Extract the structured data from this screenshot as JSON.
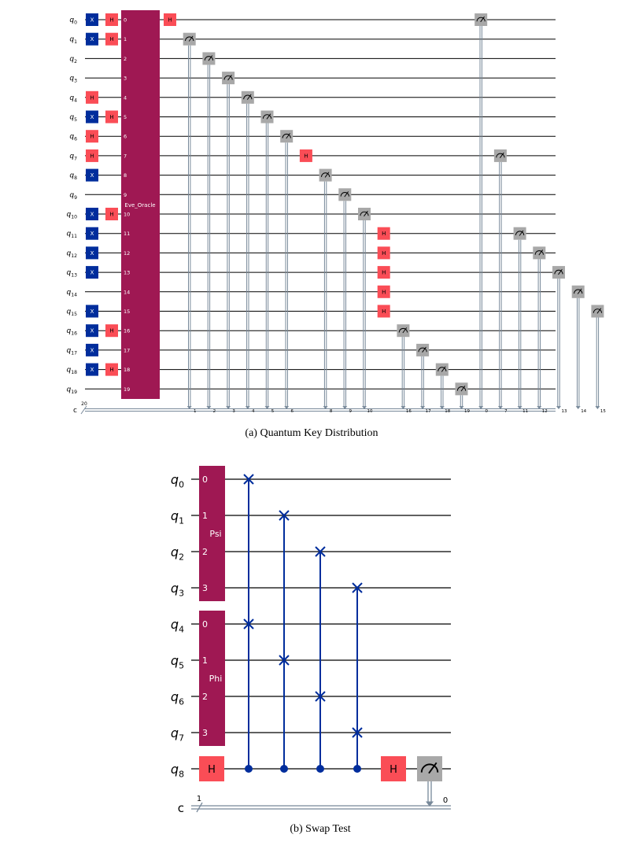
{
  "colors": {
    "wire": "#000000",
    "classical": "#778899",
    "x_gate": "#002D9C",
    "h_gate": "#FA4D56",
    "oracle": "#9F1853",
    "measure": "#A8A8A8",
    "swap": "#002D9C"
  },
  "qkd": {
    "caption": "(a) Quantum Key Distribution",
    "qubit_labels": [
      {
        "base": "q",
        "sub": "0"
      },
      {
        "base": "q",
        "sub": "1"
      },
      {
        "base": "q",
        "sub": "2"
      },
      {
        "base": "q",
        "sub": "3"
      },
      {
        "base": "q",
        "sub": "4"
      },
      {
        "base": "q",
        "sub": "5"
      },
      {
        "base": "q",
        "sub": "6"
      },
      {
        "base": "q",
        "sub": "7"
      },
      {
        "base": "q",
        "sub": "8"
      },
      {
        "base": "q",
        "sub": "9"
      },
      {
        "base": "q",
        "sub": "10"
      },
      {
        "base": "q",
        "sub": "11"
      },
      {
        "base": "q",
        "sub": "12"
      },
      {
        "base": "q",
        "sub": "13"
      },
      {
        "base": "q",
        "sub": "14"
      },
      {
        "base": "q",
        "sub": "15"
      },
      {
        "base": "q",
        "sub": "16"
      },
      {
        "base": "q",
        "sub": "17"
      },
      {
        "base": "q",
        "sub": "18"
      },
      {
        "base": "q",
        "sub": "19"
      }
    ],
    "classical_label": "c",
    "classical_count": "20",
    "x_gate_label": "X",
    "h_gate_label": "H",
    "x_qubits": [
      0,
      1,
      5,
      8,
      10,
      11,
      12,
      13,
      15,
      16,
      17,
      18
    ],
    "h_prep_qubits": [
      0,
      1,
      4,
      5,
      6,
      7,
      10,
      16,
      18
    ],
    "oracle": {
      "name": "Eve_Oracle",
      "port_labels": [
        "0",
        "1",
        "2",
        "3",
        "4",
        "5",
        "6",
        "7",
        "8",
        "9",
        "10",
        "11",
        "12",
        "13",
        "14",
        "15",
        "16",
        "17",
        "18",
        "19"
      ]
    },
    "post_ops": [
      {
        "kind": "H",
        "qubit": 0
      },
      {
        "kind": "M",
        "qubit": 1,
        "cbit": "1"
      },
      {
        "kind": "M",
        "qubit": 2,
        "cbit": "2"
      },
      {
        "kind": "M",
        "qubit": 3,
        "cbit": "3"
      },
      {
        "kind": "M",
        "qubit": 4,
        "cbit": "4"
      },
      {
        "kind": "M",
        "qubit": 5,
        "cbit": "5"
      },
      {
        "kind": "M",
        "qubit": 6,
        "cbit": "6"
      },
      {
        "kind": "H",
        "qubit": 7
      },
      {
        "kind": "M",
        "qubit": 8,
        "cbit": "8"
      },
      {
        "kind": "M",
        "qubit": 9,
        "cbit": "9"
      },
      {
        "kind": "M",
        "qubit": 10,
        "cbit": "10"
      },
      {
        "kind": "H",
        "qubits": [
          11,
          12,
          13,
          14,
          15
        ]
      },
      {
        "kind": "M",
        "qubit": 16,
        "cbit": "16"
      },
      {
        "kind": "M",
        "qubit": 17,
        "cbit": "17"
      },
      {
        "kind": "M",
        "qubit": 18,
        "cbit": "18"
      },
      {
        "kind": "M",
        "qubit": 19,
        "cbit": "19"
      },
      {
        "kind": "M",
        "qubit": 0,
        "cbit": "0"
      },
      {
        "kind": "M",
        "qubit": 7,
        "cbit": "7"
      },
      {
        "kind": "M",
        "qubit": 11,
        "cbit": "11"
      },
      {
        "kind": "M",
        "qubit": 12,
        "cbit": "12"
      },
      {
        "kind": "M",
        "qubit": 13,
        "cbit": "13"
      },
      {
        "kind": "M",
        "qubit": 14,
        "cbit": "14"
      },
      {
        "kind": "M",
        "qubit": 15,
        "cbit": "15"
      }
    ]
  },
  "swap_test": {
    "caption": "(b) Swap Test",
    "qubit_labels": [
      {
        "base": "q",
        "sub": "0"
      },
      {
        "base": "q",
        "sub": "1"
      },
      {
        "base": "q",
        "sub": "2"
      },
      {
        "base": "q",
        "sub": "3"
      },
      {
        "base": "q",
        "sub": "4"
      },
      {
        "base": "q",
        "sub": "5"
      },
      {
        "base": "q",
        "sub": "6"
      },
      {
        "base": "q",
        "sub": "7"
      },
      {
        "base": "q",
        "sub": "8"
      }
    ],
    "classical_label": "c",
    "classical_count": "1",
    "psi": {
      "name": "Psi",
      "port_labels": [
        "0",
        "1",
        "2",
        "3"
      ]
    },
    "phi": {
      "name": "Phi",
      "port_labels": [
        "0",
        "1",
        "2",
        "3"
      ]
    },
    "h_gate_label": "H",
    "swaps": [
      [
        0,
        4
      ],
      [
        1,
        5
      ],
      [
        2,
        6
      ],
      [
        3,
        7
      ]
    ],
    "control_qubit": 8,
    "measure_cbit": "0"
  }
}
